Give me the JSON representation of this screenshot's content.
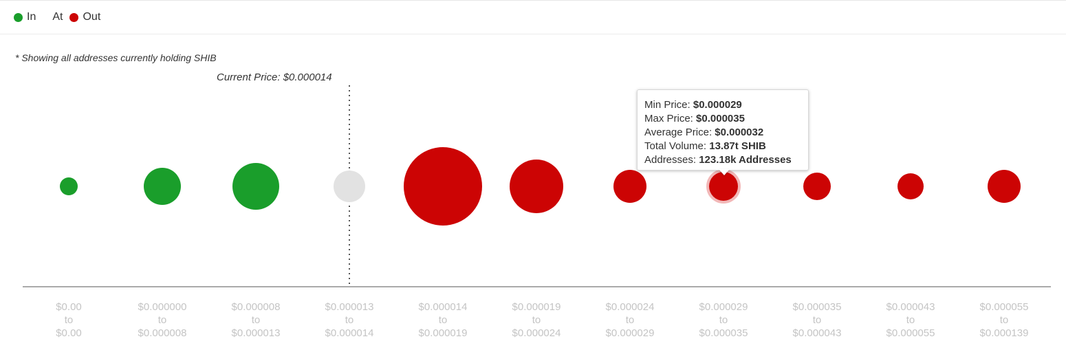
{
  "legend": [
    {
      "label": "In",
      "color": "#1a9e2b"
    },
    {
      "label": "At",
      "color": ""
    },
    {
      "label": "Out",
      "color": "#cc0404"
    }
  ],
  "note": "* Showing all addresses currently holding SHIB",
  "current_price_label": "Current Price: $0.000014",
  "tooltip": {
    "rows": [
      {
        "label": "Min Price:",
        "value": "$0.000029"
      },
      {
        "label": "Max Price:",
        "value": "$0.000035"
      },
      {
        "label": "Average Price:",
        "value": "$0.000032"
      },
      {
        "label": "Total Volume:",
        "value": "13.87t SHIB"
      },
      {
        "label": "Addresses:",
        "value": "123.18k Addresses"
      }
    ]
  },
  "colors": {
    "in": "#1a9e2b",
    "at": "#e2e2e2",
    "out": "#cc0404",
    "hover_ring": "#f2b8b8"
  },
  "chart_data": {
    "type": "bubble",
    "title": "",
    "current_price_bucket": 3,
    "hovered_bucket": 7,
    "buckets": [
      {
        "top": "$0.00",
        "mid": "to",
        "bottom": "$0.00",
        "status": "in",
        "size": 13
      },
      {
        "top": "$0.000000",
        "mid": "to",
        "bottom": "$0.000008",
        "status": "in",
        "size": 27
      },
      {
        "top": "$0.000008",
        "mid": "to",
        "bottom": "$0.000013",
        "status": "in",
        "size": 34
      },
      {
        "top": "$0.000013",
        "mid": "to",
        "bottom": "$0.000014",
        "status": "at",
        "size": 23
      },
      {
        "top": "$0.000014",
        "mid": "to",
        "bottom": "$0.000019",
        "status": "out",
        "size": 57
      },
      {
        "top": "$0.000019",
        "mid": "to",
        "bottom": "$0.000024",
        "status": "out",
        "size": 39
      },
      {
        "top": "$0.000024",
        "mid": "to",
        "bottom": "$0.000029",
        "status": "out",
        "size": 24
      },
      {
        "top": "$0.000029",
        "mid": "to",
        "bottom": "$0.000035",
        "status": "out",
        "size": 21
      },
      {
        "top": "$0.000035",
        "mid": "to",
        "bottom": "$0.000043",
        "status": "out",
        "size": 20
      },
      {
        "top": "$0.000043",
        "mid": "to",
        "bottom": "$0.000055",
        "status": "out",
        "size": 19
      },
      {
        "top": "$0.000055",
        "mid": "to",
        "bottom": "$0.000139",
        "status": "out",
        "size": 24
      }
    ]
  }
}
